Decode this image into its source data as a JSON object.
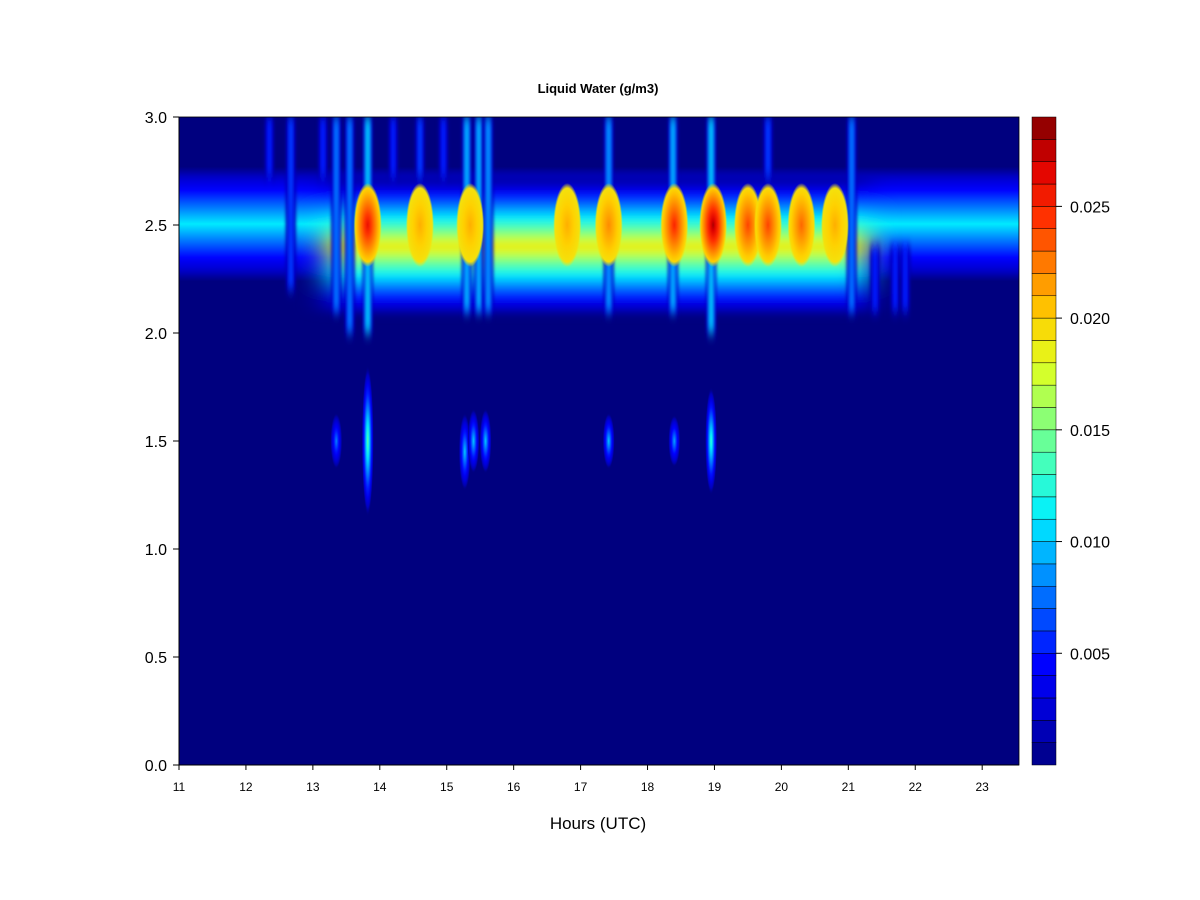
{
  "chart_data": {
    "type": "heatmap",
    "title": "Liquid Water (g/m3)",
    "xlabel": "Hours (UTC)",
    "ylabel": "",
    "xlim": [
      11,
      23.55
    ],
    "ylim": [
      0,
      3
    ],
    "x_ticks": [
      11,
      12,
      13,
      14,
      15,
      16,
      17,
      18,
      19,
      20,
      21,
      22,
      23
    ],
    "y_ticks": [
      0.0,
      0.5,
      1.0,
      1.5,
      2.0,
      2.5,
      3.0
    ],
    "y_tick_labels": [
      "0.0",
      "0.5",
      "1.0",
      "1.5",
      "2.0",
      "2.5",
      "3.0"
    ],
    "colorbar": {
      "min": 0.0,
      "max": 0.029,
      "levels": 29,
      "ticks": [
        0.005,
        0.01,
        0.015,
        0.02,
        0.025
      ],
      "tick_labels": [
        "0.005",
        "0.010",
        "0.015",
        "0.020",
        "0.025"
      ],
      "colormap": [
        "#00007F",
        "#0000D0",
        "#0000FF",
        "#0050FF",
        "#00A0FF",
        "#00F0FF",
        "#40FFC0",
        "#90FF70",
        "#E0FF20",
        "#FFD000",
        "#FF8000",
        "#FF3000",
        "#E00000",
        "#7F0000"
      ]
    },
    "cloud_layer": {
      "center_height": 2.5,
      "base_height": 2.08,
      "top_height": 2.72,
      "time_range": [
        11,
        23.55
      ],
      "background_peak": 0.011,
      "enhanced_time_range": [
        13.2,
        21.3
      ],
      "enhanced_peak": 0.019
    },
    "hotspots": [
      {
        "time": 13.82,
        "value": 0.026
      },
      {
        "time": 14.6,
        "value": 0.021
      },
      {
        "time": 15.35,
        "value": 0.021
      },
      {
        "time": 16.8,
        "value": 0.021
      },
      {
        "time": 17.42,
        "value": 0.022
      },
      {
        "time": 18.4,
        "value": 0.025
      },
      {
        "time": 18.98,
        "value": 0.028
      },
      {
        "time": 19.5,
        "value": 0.024
      },
      {
        "time": 19.8,
        "value": 0.024
      },
      {
        "time": 20.3,
        "value": 0.023
      },
      {
        "time": 20.8,
        "value": 0.021
      }
    ],
    "virga_streaks": [
      {
        "time": 12.35,
        "y_from": 2.72,
        "y_to": 3.0,
        "value": 0.006
      },
      {
        "time": 12.67,
        "y_from": 2.2,
        "y_to": 3.0,
        "value": 0.007
      },
      {
        "time": 13.15,
        "y_from": 2.72,
        "y_to": 3.0,
        "value": 0.006
      },
      {
        "time": 13.35,
        "y_from": 2.1,
        "y_to": 3.0,
        "value": 0.009
      },
      {
        "time": 13.55,
        "y_from": 2.0,
        "y_to": 3.0,
        "value": 0.009
      },
      {
        "time": 13.82,
        "y_from": 2.0,
        "y_to": 3.0,
        "value": 0.012
      },
      {
        "time": 14.2,
        "y_from": 2.72,
        "y_to": 3.0,
        "value": 0.006
      },
      {
        "time": 14.6,
        "y_from": 2.72,
        "y_to": 3.0,
        "value": 0.007
      },
      {
        "time": 14.95,
        "y_from": 2.72,
        "y_to": 3.0,
        "value": 0.006
      },
      {
        "time": 15.3,
        "y_from": 2.1,
        "y_to": 3.0,
        "value": 0.011
      },
      {
        "time": 15.48,
        "y_from": 2.1,
        "y_to": 3.0,
        "value": 0.011
      },
      {
        "time": 15.62,
        "y_from": 2.1,
        "y_to": 3.0,
        "value": 0.01
      },
      {
        "time": 17.42,
        "y_from": 2.1,
        "y_to": 3.0,
        "value": 0.01
      },
      {
        "time": 18.38,
        "y_from": 2.1,
        "y_to": 3.0,
        "value": 0.011
      },
      {
        "time": 18.95,
        "y_from": 2.0,
        "y_to": 3.0,
        "value": 0.012
      },
      {
        "time": 19.8,
        "y_from": 2.72,
        "y_to": 3.0,
        "value": 0.007
      },
      {
        "time": 21.05,
        "y_from": 2.1,
        "y_to": 3.0,
        "value": 0.009
      },
      {
        "time": 21.4,
        "y_from": 2.1,
        "y_to": 2.4,
        "value": 0.006
      },
      {
        "time": 21.7,
        "y_from": 2.1,
        "y_to": 2.4,
        "value": 0.006
      },
      {
        "time": 21.85,
        "y_from": 2.1,
        "y_to": 2.4,
        "value": 0.006
      }
    ],
    "lower_patches": [
      {
        "time": 13.35,
        "y_center": 1.5,
        "half_height": 0.13,
        "value": 0.008
      },
      {
        "time": 13.82,
        "y_center": 1.5,
        "half_height": 0.35,
        "value": 0.014
      },
      {
        "time": 15.27,
        "y_center": 1.45,
        "half_height": 0.18,
        "value": 0.01
      },
      {
        "time": 15.4,
        "y_center": 1.5,
        "half_height": 0.15,
        "value": 0.01
      },
      {
        "time": 15.58,
        "y_center": 1.5,
        "half_height": 0.15,
        "value": 0.01
      },
      {
        "time": 17.42,
        "y_center": 1.5,
        "half_height": 0.13,
        "value": 0.01
      },
      {
        "time": 18.4,
        "y_center": 1.5,
        "half_height": 0.12,
        "value": 0.009
      },
      {
        "time": 18.95,
        "y_center": 1.5,
        "half_height": 0.25,
        "value": 0.013
      }
    ]
  }
}
